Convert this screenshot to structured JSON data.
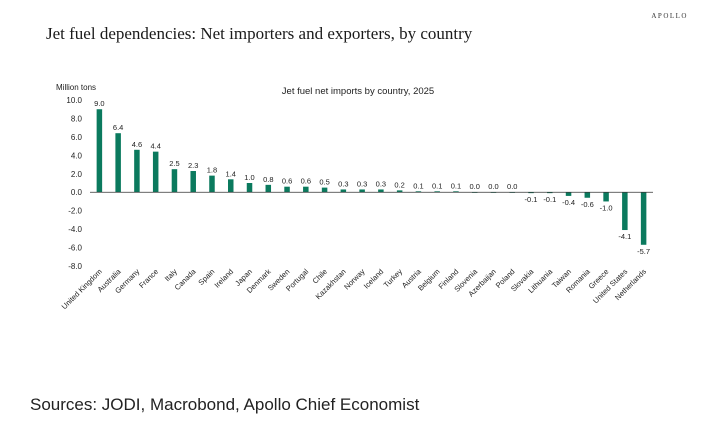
{
  "brand": "APOLLO",
  "headline": "Jet fuel dependencies: Net importers and exporters, by country",
  "sources": "Sources: JODI, Macrobond, Apollo Chief Economist",
  "colors": {
    "bar": "#0b7a5e",
    "axis": "#333333",
    "text": "#222222"
  },
  "chart_data": {
    "type": "bar",
    "title": "Jet fuel net imports by country, 2025",
    "ylabel": "Million tons",
    "xlabel": "",
    "ylim": [
      -8,
      10
    ],
    "yticks": [
      10,
      8,
      6,
      4,
      2,
      0,
      -2,
      -4,
      -6,
      -8
    ],
    "ytick_labels": [
      "10.0",
      "8.0",
      "6.0",
      "4.0",
      "2.0",
      "0.0",
      "-2.0",
      "-4.0",
      "-6.0",
      "-8.0"
    ],
    "grid": false,
    "categories": [
      "United Kingdom",
      "Australia",
      "Germany",
      "France",
      "Italy",
      "Canada",
      "Spain",
      "Ireland",
      "Japan",
      "Denmark",
      "Sweden",
      "Portugal",
      "Chile",
      "Kazakhstan",
      "Norway",
      "Iceland",
      "Turkey",
      "Austria",
      "Belgium",
      "Finland",
      "Slovenia",
      "Azerbaijan",
      "Poland",
      "Slovakia",
      "Lithuania",
      "Taiwan",
      "Romania",
      "Greece",
      "United States",
      "Netherlands"
    ],
    "values": [
      9.0,
      6.4,
      4.6,
      4.4,
      2.5,
      2.3,
      1.8,
      1.4,
      1.0,
      0.8,
      0.6,
      0.6,
      0.5,
      0.3,
      0.3,
      0.3,
      0.2,
      0.1,
      0.1,
      0.1,
      0.0,
      0.0,
      0.0,
      -0.1,
      -0.1,
      -0.4,
      -0.6,
      -1.0,
      -4.1,
      -5.7
    ],
    "value_labels": [
      "9.0",
      "6.4",
      "4.6",
      "4.4",
      "2.5",
      "2.3",
      "1.8",
      "1.4",
      "1.0",
      "0.8",
      "0.6",
      "0.6",
      "0.5",
      "0.3",
      "0.3",
      "0.3",
      "0.2",
      "0.1",
      "0.1",
      "0.1",
      "0.0",
      "0.0",
      "0.0",
      "-0.1",
      "-0.1",
      "-0.4",
      "-0.6",
      "-1.0",
      "-4.1",
      "-5.7"
    ]
  }
}
